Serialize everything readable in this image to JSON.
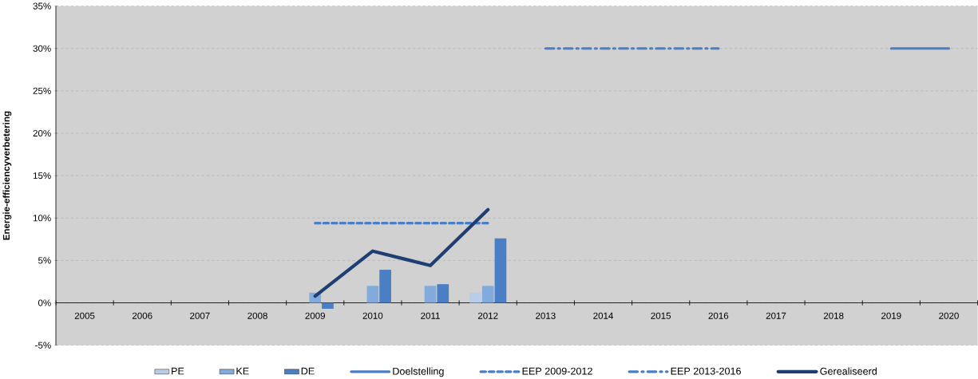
{
  "chart_data": {
    "type": "bar",
    "ylabel": "Energie-efficiencyverbetering",
    "categories": [
      "2005",
      "2006",
      "2007",
      "2008",
      "2009",
      "2010",
      "2011",
      "2012",
      "2013",
      "2014",
      "2015",
      "2016",
      "2017",
      "2018",
      "2019",
      "2020"
    ],
    "ylim": [
      -5,
      35
    ],
    "yticks": [
      {
        "value": -5,
        "label": "-5%"
      },
      {
        "value": 0,
        "label": "0%"
      },
      {
        "value": 5,
        "label": "5%"
      },
      {
        "value": 10,
        "label": "10%"
      },
      {
        "value": 15,
        "label": "15%"
      },
      {
        "value": 20,
        "label": "20%"
      },
      {
        "value": 25,
        "label": "25%"
      },
      {
        "value": 30,
        "label": "30%"
      },
      {
        "value": 35,
        "label": "35%"
      }
    ],
    "grid": "y",
    "legend": "bottom",
    "series": [
      {
        "name": "PE",
        "color": "#b9cde6",
        "values": [
          null,
          null,
          null,
          null,
          null,
          null,
          null,
          1.2,
          null,
          null,
          null,
          null,
          null,
          null,
          null,
          null
        ]
      },
      {
        "name": "KE",
        "color": "#82abdc",
        "values": [
          null,
          null,
          null,
          null,
          1.2,
          2.0,
          2.0,
          2.0,
          null,
          null,
          null,
          null,
          null,
          null,
          null,
          null
        ]
      },
      {
        "name": "DE",
        "color": "#4a7ec5",
        "values": [
          null,
          null,
          null,
          null,
          -0.7,
          3.9,
          2.2,
          7.6,
          null,
          null,
          null,
          null,
          null,
          null,
          null,
          null
        ]
      },
      {
        "name": "Doelstelling",
        "type": "line",
        "line_style": "solid",
        "color": "#4a7ec5",
        "values": [
          null,
          null,
          null,
          null,
          null,
          null,
          null,
          null,
          null,
          null,
          null,
          null,
          null,
          null,
          30,
          30
        ]
      },
      {
        "name": "EEP 2009-2012",
        "type": "line",
        "line_style": "dashed",
        "color": "#4a7ec5",
        "values": [
          null,
          null,
          null,
          null,
          9.4,
          9.4,
          9.4,
          9.4,
          null,
          null,
          null,
          null,
          null,
          null,
          null,
          null
        ]
      },
      {
        "name": "EEP 2013-2016",
        "type": "line",
        "line_style": "dashdot",
        "color": "#4a7ec5",
        "values": [
          null,
          null,
          null,
          null,
          null,
          null,
          null,
          null,
          30,
          30,
          30,
          30,
          null,
          null,
          null,
          null
        ]
      },
      {
        "name": "Gerealiseerd",
        "type": "line",
        "line_style": "solid",
        "color": "#1f3f73",
        "values": [
          null,
          null,
          null,
          null,
          0.8,
          6.1,
          4.4,
          11.0,
          null,
          null,
          null,
          null,
          null,
          null,
          null,
          null
        ]
      }
    ]
  }
}
